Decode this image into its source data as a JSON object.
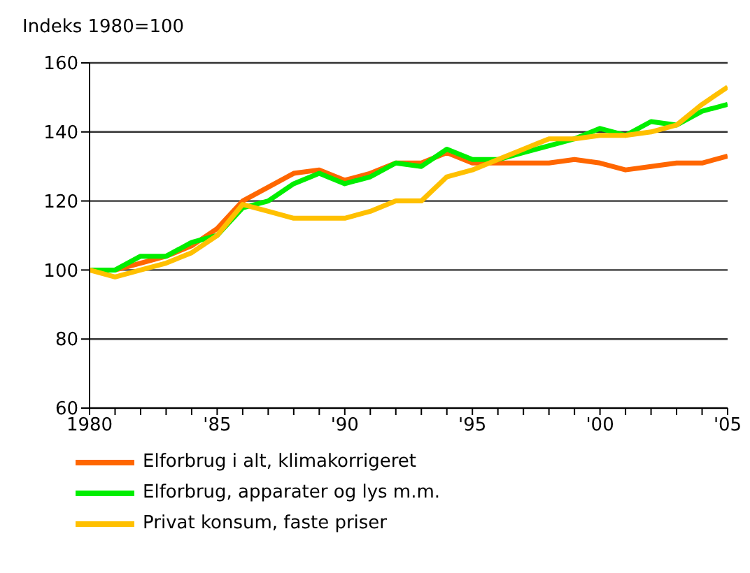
{
  "chart_data": {
    "type": "line",
    "ylabel": "Indeks 1980=100",
    "x": [
      1980,
      1981,
      1982,
      1983,
      1984,
      1985,
      1986,
      1987,
      1988,
      1989,
      1990,
      1991,
      1992,
      1993,
      1994,
      1995,
      1996,
      1997,
      1998,
      1999,
      2000,
      2001,
      2002,
      2003,
      2004,
      2005
    ],
    "series": [
      {
        "name": "Elforbrug i alt, klimakorrigeret",
        "color": "#ff6600",
        "values": [
          100,
          100,
          102,
          104,
          107,
          112,
          120,
          124,
          128,
          129,
          126,
          128,
          131,
          131,
          134,
          131,
          131,
          131,
          131,
          132,
          131,
          129,
          130,
          131,
          131,
          133
        ]
      },
      {
        "name": "Elforbrug, apparater og lys m.m.",
        "color": "#00ee00",
        "values": [
          100,
          100,
          104,
          104,
          108,
          110,
          118,
          120,
          125,
          128,
          125,
          127,
          131,
          130,
          135,
          132,
          132,
          134,
          136,
          138,
          141,
          139,
          143,
          142,
          146,
          148
        ]
      },
      {
        "name": "Privat konsum, faste priser",
        "color": "#ffc000",
        "values": [
          100,
          98,
          100,
          102,
          105,
          110,
          119,
          117,
          115,
          115,
          115,
          117,
          120,
          120,
          127,
          129,
          132,
          135,
          138,
          138,
          139,
          139,
          140,
          142,
          148,
          153
        ]
      }
    ],
    "xlim": [
      1980,
      2005
    ],
    "xticks": [
      {
        "value": 1980,
        "label": "1980"
      },
      {
        "value": 1981,
        "label": null
      },
      {
        "value": 1982,
        "label": null
      },
      {
        "value": 1983,
        "label": null
      },
      {
        "value": 1984,
        "label": null
      },
      {
        "value": 1985,
        "label": "'85"
      },
      {
        "value": 1986,
        "label": null
      },
      {
        "value": 1987,
        "label": null
      },
      {
        "value": 1988,
        "label": null
      },
      {
        "value": 1989,
        "label": null
      },
      {
        "value": 1990,
        "label": "'90"
      },
      {
        "value": 1991,
        "label": null
      },
      {
        "value": 1992,
        "label": null
      },
      {
        "value": 1993,
        "label": null
      },
      {
        "value": 1994,
        "label": null
      },
      {
        "value": 1995,
        "label": "'95"
      },
      {
        "value": 1996,
        "label": null
      },
      {
        "value": 1997,
        "label": null
      },
      {
        "value": 1998,
        "label": null
      },
      {
        "value": 1999,
        "label": null
      },
      {
        "value": 2000,
        "label": "'00"
      },
      {
        "value": 2001,
        "label": null
      },
      {
        "value": 2002,
        "label": null
      },
      {
        "value": 2003,
        "label": null
      },
      {
        "value": 2004,
        "label": null
      },
      {
        "value": 2005,
        "label": "'05"
      }
    ],
    "ylim": [
      60,
      160
    ],
    "yticks": [
      60,
      80,
      100,
      120,
      140,
      160
    ],
    "grid": "y",
    "legend": "bottom",
    "marker": "none",
    "line_style": "solid"
  }
}
